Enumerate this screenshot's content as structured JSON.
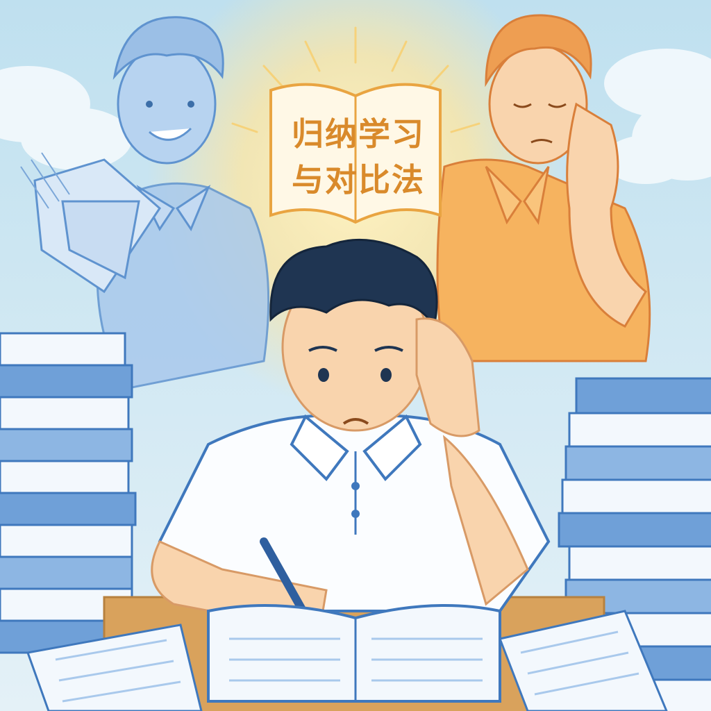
{
  "image": {
    "book_title_line1": "归纳学习",
    "book_title_line2": "与对比法"
  },
  "colors": {
    "sky": "#cfe6f1",
    "glow": "#ffe9a8",
    "blue_figure": "#8fb7e3",
    "blue_line": "#4a86c8",
    "orange_shirt": "#f6b35f",
    "orange_line": "#d97f3a",
    "skin": "#f9d4ad",
    "hair": "#1f3552",
    "desk": "#d9a25c",
    "paper": "#f3f8fd",
    "book_blue": "#6fa0d8"
  }
}
